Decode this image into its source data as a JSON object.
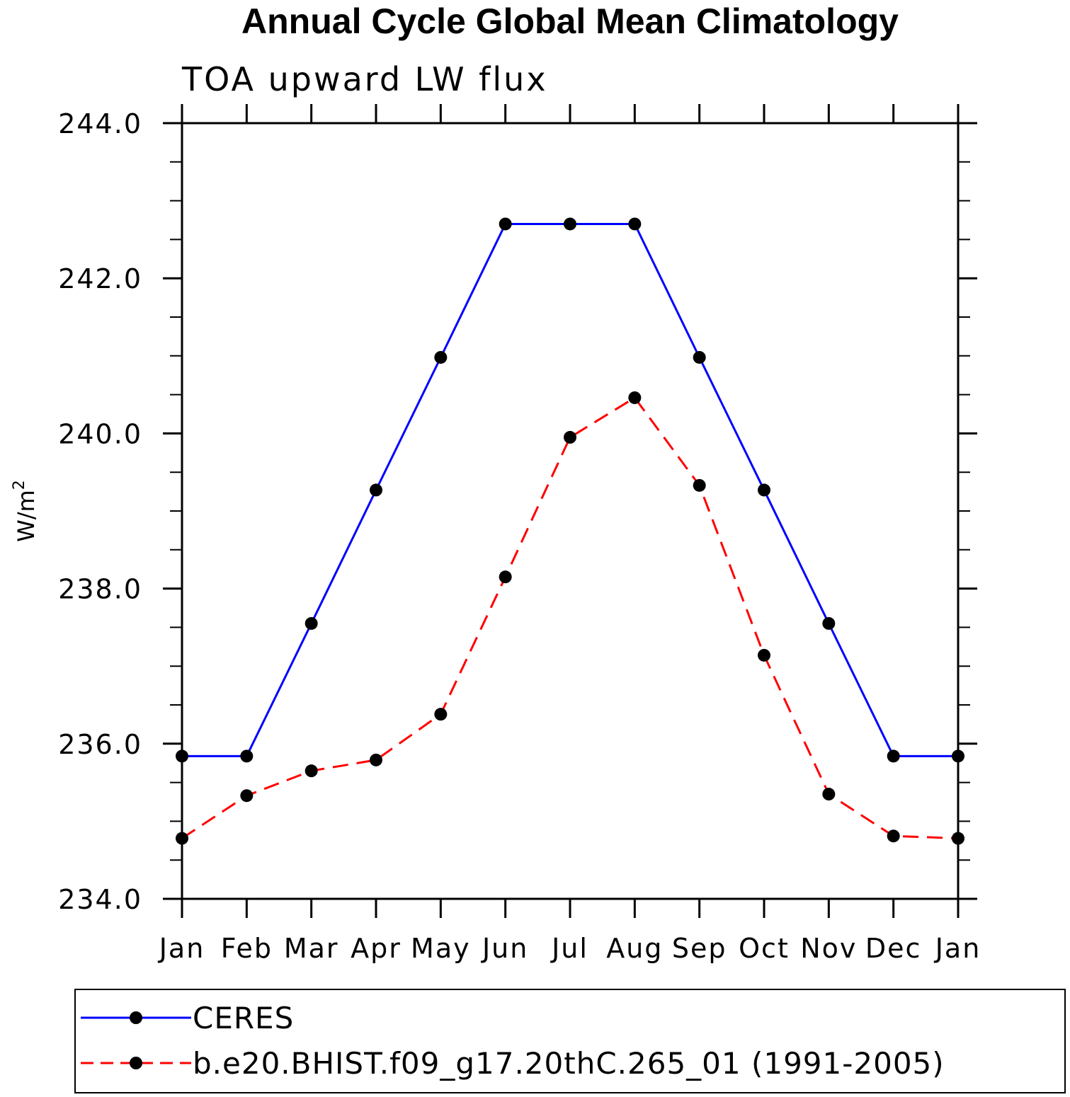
{
  "chart_data": {
    "type": "line",
    "title": "Annual Cycle Global Mean Climatology",
    "subtitle": "TOA upward LW flux",
    "xlabel": "",
    "ylabel": "W/m",
    "ylabel_superscript": "2",
    "categories": [
      "Jan",
      "Feb",
      "Mar",
      "Apr",
      "May",
      "Jun",
      "Jul",
      "Aug",
      "Sep",
      "Oct",
      "Nov",
      "Dec",
      "Jan"
    ],
    "ylim": [
      234.0,
      244.0
    ],
    "y_major_ticks": [
      "234.0",
      "236.0",
      "238.0",
      "240.0",
      "242.0",
      "244.0"
    ],
    "y_minor_step": 0.5,
    "grid": false,
    "legend_position": "bottom",
    "series": [
      {
        "name": "CERES",
        "color": "#0000ff",
        "dash": "solid",
        "marker": "filled-circle",
        "values": [
          235.84,
          235.84,
          237.55,
          239.27,
          240.98,
          242.7,
          242.7,
          242.7,
          240.98,
          239.27,
          237.55,
          235.84,
          235.84
        ]
      },
      {
        "name": "b.e20.BHIST.f09_g17.20thC.265_01 (1991-2005)",
        "color": "#ff0000",
        "dash": "dashed",
        "marker": "filled-circle",
        "values": [
          234.78,
          235.33,
          235.65,
          235.79,
          236.38,
          238.15,
          239.95,
          240.46,
          239.33,
          237.14,
          235.35,
          234.81,
          234.78
        ]
      }
    ]
  }
}
